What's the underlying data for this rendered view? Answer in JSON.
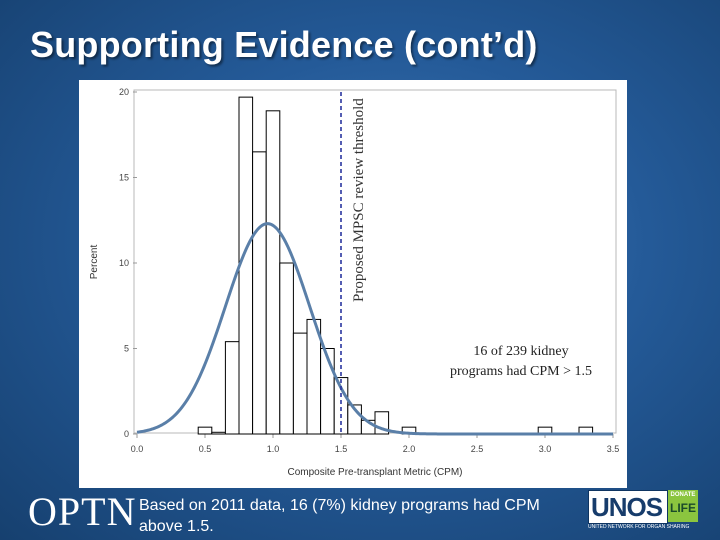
{
  "slide": {
    "title": "Supporting Evidence (cont’d)",
    "footnote": "Based on 2011 data, 16 (7%) kidney programs had CPM above 1.5.",
    "optn_logo": "OPTN",
    "unos_logo": {
      "word": "UNOS",
      "donate": "DONATE",
      "life": "LIFE",
      "subtitle": "UNITED NETWORK FOR ORGAN SHARING"
    }
  },
  "colors": {
    "background": "#245a98",
    "bar_stroke": "#000000",
    "curve": "#5a7fa8",
    "threshold_line": "#2a35a0",
    "frame": "#b8b8b8"
  },
  "chart_data": {
    "type": "bar",
    "subtype": "histogram_with_normal_density",
    "xlabel": "Composite Pre-transplant Metric (CPM)",
    "ylabel": "Percent",
    "xlim": [
      0.0,
      3.5
    ],
    "ylim": [
      0,
      20
    ],
    "xticks": [
      "0.0",
      "0.5",
      "1.0",
      "1.5",
      "2.0",
      "2.5",
      "3.0",
      "3.5"
    ],
    "xtick_values": [
      0.0,
      0.5,
      1.0,
      1.5,
      2.0,
      2.5,
      3.0,
      3.5
    ],
    "yticks": [
      "0",
      "5",
      "10",
      "15",
      "20"
    ],
    "ytick_values": [
      0,
      5,
      10,
      15,
      20
    ],
    "bin_width": 0.1,
    "bins": [
      {
        "left": 0.45,
        "value": 0.4
      },
      {
        "left": 0.55,
        "value": 0.1
      },
      {
        "left": 0.65,
        "value": 5.4
      },
      {
        "left": 0.75,
        "value": 19.7
      },
      {
        "left": 0.85,
        "value": 16.5
      },
      {
        "left": 0.95,
        "value": 18.9
      },
      {
        "left": 1.05,
        "value": 10.0
      },
      {
        "left": 1.15,
        "value": 5.9
      },
      {
        "left": 1.25,
        "value": 6.7
      },
      {
        "left": 1.35,
        "value": 5.0
      },
      {
        "left": 1.45,
        "value": 3.3
      },
      {
        "left": 1.55,
        "value": 1.7
      },
      {
        "left": 1.65,
        "value": 0.8
      },
      {
        "left": 1.75,
        "value": 1.3
      },
      {
        "left": 1.85,
        "value": 0.0
      },
      {
        "left": 1.95,
        "value": 0.4
      },
      {
        "left": 2.95,
        "value": 0.4
      },
      {
        "left": 3.25,
        "value": 0.4
      }
    ],
    "normal_curve": {
      "mean": 0.96,
      "sd": 0.31,
      "peak": 12.3
    },
    "threshold": {
      "x": 1.5,
      "label": "Proposed MPSC review threshold"
    },
    "annotation": {
      "lines": [
        "16  of 239 kidney",
        "programs had CPM > 1.5"
      ]
    }
  }
}
